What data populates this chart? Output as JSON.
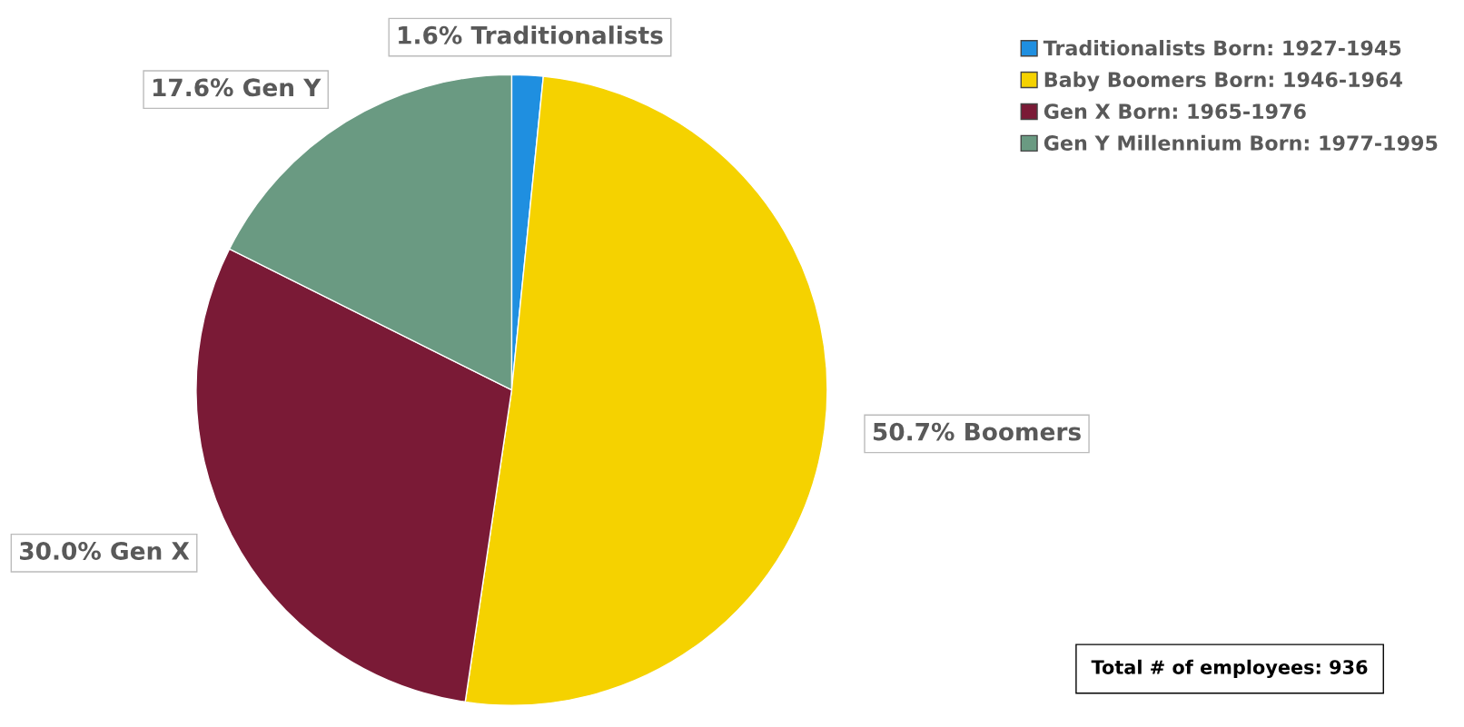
{
  "chart_data": {
    "type": "pie",
    "categories": [
      "Traditionalists Born: 1927-1945",
      "Baby Boomers Born: 1946-1964",
      "Gen X Born: 1965-1976",
      "Gen Y Millennium Born: 1977-1995"
    ],
    "values": [
      1.6,
      50.7,
      30.0,
      17.6
    ],
    "colors": [
      "#1f8fe0",
      "#f5d200",
      "#7a1a36",
      "#6a9a82"
    ],
    "value_labels": [
      "1.6% Traditionalists",
      "50.7% Boomers",
      "30.0% Gen X",
      "17.6% Gen Y"
    ],
    "legend": "top right",
    "annotations": [
      "Total # of employees: 936"
    ]
  }
}
